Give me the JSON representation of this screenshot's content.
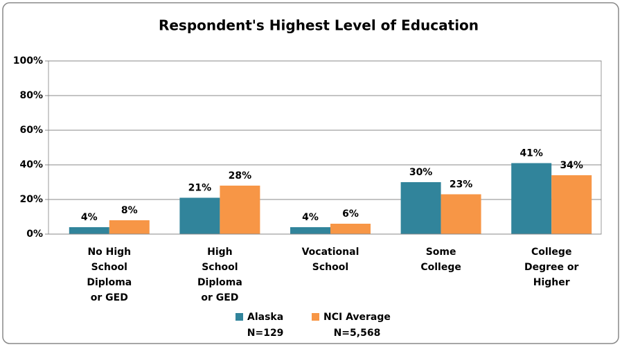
{
  "chart_data": {
    "type": "bar",
    "title": "Respondent's Highest Level of Education",
    "categories": [
      [
        "No High",
        "School",
        "Diploma",
        "or GED"
      ],
      [
        "High",
        "School",
        "Diploma",
        "or GED"
      ],
      [
        "Vocational",
        "School"
      ],
      [
        "Some",
        "College"
      ],
      [
        "College",
        "Degree or",
        "Higher"
      ]
    ],
    "series": [
      {
        "name": "Alaska",
        "sample": "N=129",
        "color": "#31849b",
        "values": [
          4,
          21,
          4,
          30,
          41
        ],
        "value_labels": [
          "4%",
          "21%",
          "4%",
          "30%",
          "41%"
        ]
      },
      {
        "name": "NCI Average",
        "sample": "N=5,568",
        "color": "#f79646",
        "values": [
          8,
          28,
          6,
          23,
          34
        ],
        "value_labels": [
          "8%",
          "28%",
          "6%",
          "23%",
          "34%"
        ]
      }
    ],
    "ylim": [
      0,
      100
    ],
    "yticks": [
      {
        "value": 0,
        "label": "0%"
      },
      {
        "value": 20,
        "label": "20%"
      },
      {
        "value": 40,
        "label": "40%"
      },
      {
        "value": 60,
        "label": "60%"
      },
      {
        "value": 80,
        "label": "80%"
      },
      {
        "value": 100,
        "label": "100%"
      }
    ],
    "grid": true,
    "legend": "bottom"
  }
}
